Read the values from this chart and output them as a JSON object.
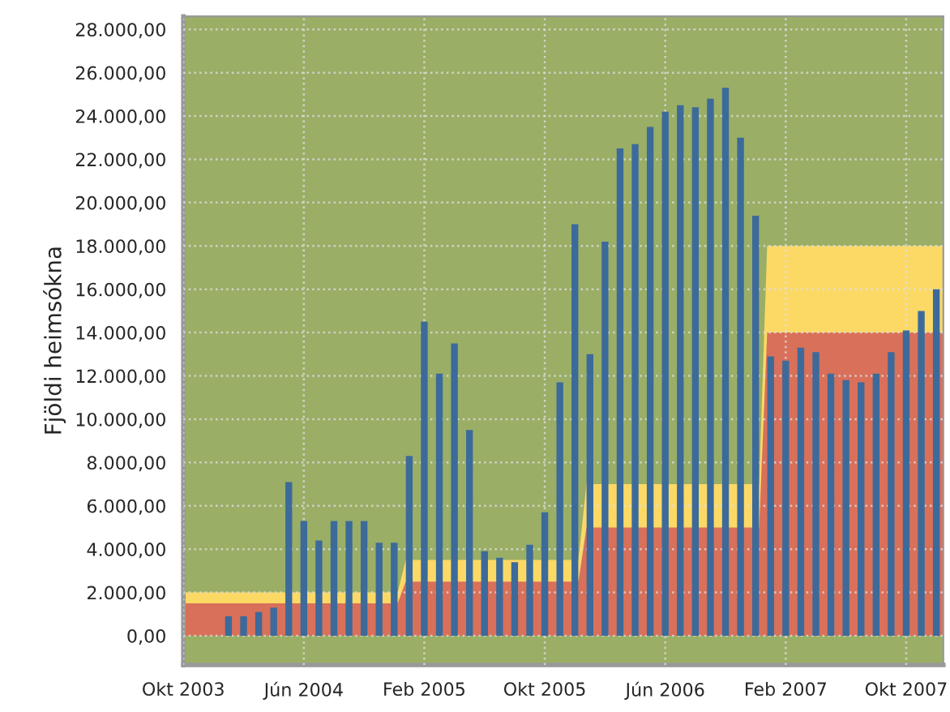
{
  "chart_data": {
    "type": "bar",
    "ylabel": "Fjöldi heimsókna",
    "x": [
      "2004-01",
      "2004-02",
      "2004-03",
      "2004-04",
      "2004-05",
      "2004-06",
      "2004-07",
      "2004-08",
      "2004-09",
      "2004-10",
      "2004-11",
      "2004-12",
      "2005-01",
      "2005-02",
      "2005-03",
      "2005-04",
      "2005-05",
      "2005-06",
      "2005-07",
      "2005-08",
      "2005-09",
      "2005-10",
      "2005-11",
      "2005-12",
      "2006-01",
      "2006-02",
      "2006-03",
      "2006-04",
      "2006-05",
      "2006-06",
      "2006-07",
      "2006-08",
      "2006-09",
      "2006-10",
      "2006-11",
      "2006-12",
      "2007-01",
      "2007-02",
      "2007-03",
      "2007-04",
      "2007-05",
      "2007-06",
      "2007-07",
      "2007-08",
      "2007-09",
      "2007-10",
      "2007-11",
      "2007-12"
    ],
    "series": [
      {
        "type": "area",
        "color": "#fcd965",
        "x": [
          "2003-10",
          "2004-12-08",
          "2004-12-24",
          "2005-12-08",
          "2005-12-24",
          "2006-12-08",
          "2006-12-24",
          "2007-12-15"
        ],
        "values": [
          2000,
          2000,
          3500,
          3500,
          7000,
          7000,
          18000,
          18000
        ]
      },
      {
        "type": "area",
        "color": "#d9705a",
        "x": [
          "2003-10",
          "2004-12-08",
          "2004-12-24",
          "2005-12-08",
          "2005-12-24",
          "2006-12-08",
          "2006-12-24",
          "2007-12-15"
        ],
        "values": [
          1500,
          1500,
          2500,
          2500,
          5000,
          5000,
          14000,
          14000
        ]
      },
      {
        "color": "#3c6a9a",
        "values": [
          900,
          900,
          1100,
          1300,
          7100,
          5300,
          4400,
          5300,
          5300,
          5300,
          4300,
          4300,
          8300,
          14500,
          12100,
          13500,
          9500,
          3900,
          3600,
          3400,
          4200,
          5700,
          11700,
          19000,
          13000,
          18200,
          22500,
          22700,
          23500,
          24200,
          24500,
          24400,
          24800,
          25300,
          23000,
          19400,
          12900,
          12700,
          13300,
          13100,
          12100,
          11800,
          11700,
          12100,
          13100,
          14100,
          15000,
          16000
        ]
      }
    ],
    "xlim": [
      "2003-10",
      "2007-12-15"
    ],
    "xticks": [
      {
        "value": "2003-10",
        "label": "Okt 2003"
      },
      {
        "value": "2004-06",
        "label": "Jún 2004"
      },
      {
        "value": "2005-02",
        "label": "Feb 2005"
      },
      {
        "value": "2005-10",
        "label": "Okt 2005"
      },
      {
        "value": "2006-06",
        "label": "Jún 2006"
      },
      {
        "value": "2007-02",
        "label": "Feb 2007"
      },
      {
        "value": "2007-10",
        "label": "Okt 2007"
      }
    ],
    "ylim": [
      -1350,
      28600
    ],
    "yticks": [
      {
        "value": 0,
        "label": "0,00"
      },
      {
        "value": 2000,
        "label": "2.000,00"
      },
      {
        "value": 4000,
        "label": "4.000,00"
      },
      {
        "value": 6000,
        "label": "6.000,00"
      },
      {
        "value": 8000,
        "label": "8.000,00"
      },
      {
        "value": 10000,
        "label": "10.000,00"
      },
      {
        "value": 12000,
        "label": "12.000,00"
      },
      {
        "value": 14000,
        "label": "14.000,00"
      },
      {
        "value": 16000,
        "label": "16.000,00"
      },
      {
        "value": 18000,
        "label": "18.000,00"
      },
      {
        "value": 20000,
        "label": "20.000,00"
      },
      {
        "value": 22000,
        "label": "22.000,00"
      },
      {
        "value": 24000,
        "label": "24.000,00"
      },
      {
        "value": 26000,
        "label": "26.000,00"
      },
      {
        "value": 28000,
        "label": "28.000,00"
      }
    ],
    "grid": true,
    "legend": false
  }
}
